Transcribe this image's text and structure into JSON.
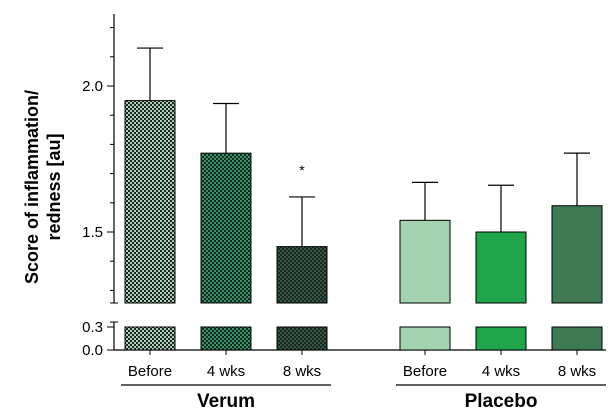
{
  "chart_data": {
    "type": "bar",
    "ylabel_line1": "Score of inflammation/",
    "ylabel_line2": "redness [au]",
    "y_ticks": [
      "2.0",
      "1.5",
      "0.3",
      "0.0"
    ],
    "y_axis_break": true,
    "groups": [
      {
        "name": "Verum",
        "categories": [
          "Before",
          "4 wks",
          "8 wks"
        ],
        "values": [
          1.95,
          1.77,
          1.45
        ],
        "error_upper": [
          2.13,
          1.94,
          1.62
        ],
        "pattern": "checkered",
        "annotations": [
          "",
          "",
          "*"
        ]
      },
      {
        "name": "Placebo",
        "categories": [
          "Before",
          "4 wks",
          "8 wks"
        ],
        "values": [
          1.54,
          1.5,
          1.59
        ],
        "error_upper": [
          1.67,
          1.66,
          1.77
        ],
        "pattern": "solid",
        "annotations": [
          "",
          "",
          ""
        ]
      }
    ],
    "colors": {
      "verum": [
        "#a9d3b6",
        "#2c9a62",
        "#2b5b40"
      ],
      "placebo": [
        "#a3d3b1",
        "#1fa54a",
        "#3f7a55"
      ]
    }
  }
}
